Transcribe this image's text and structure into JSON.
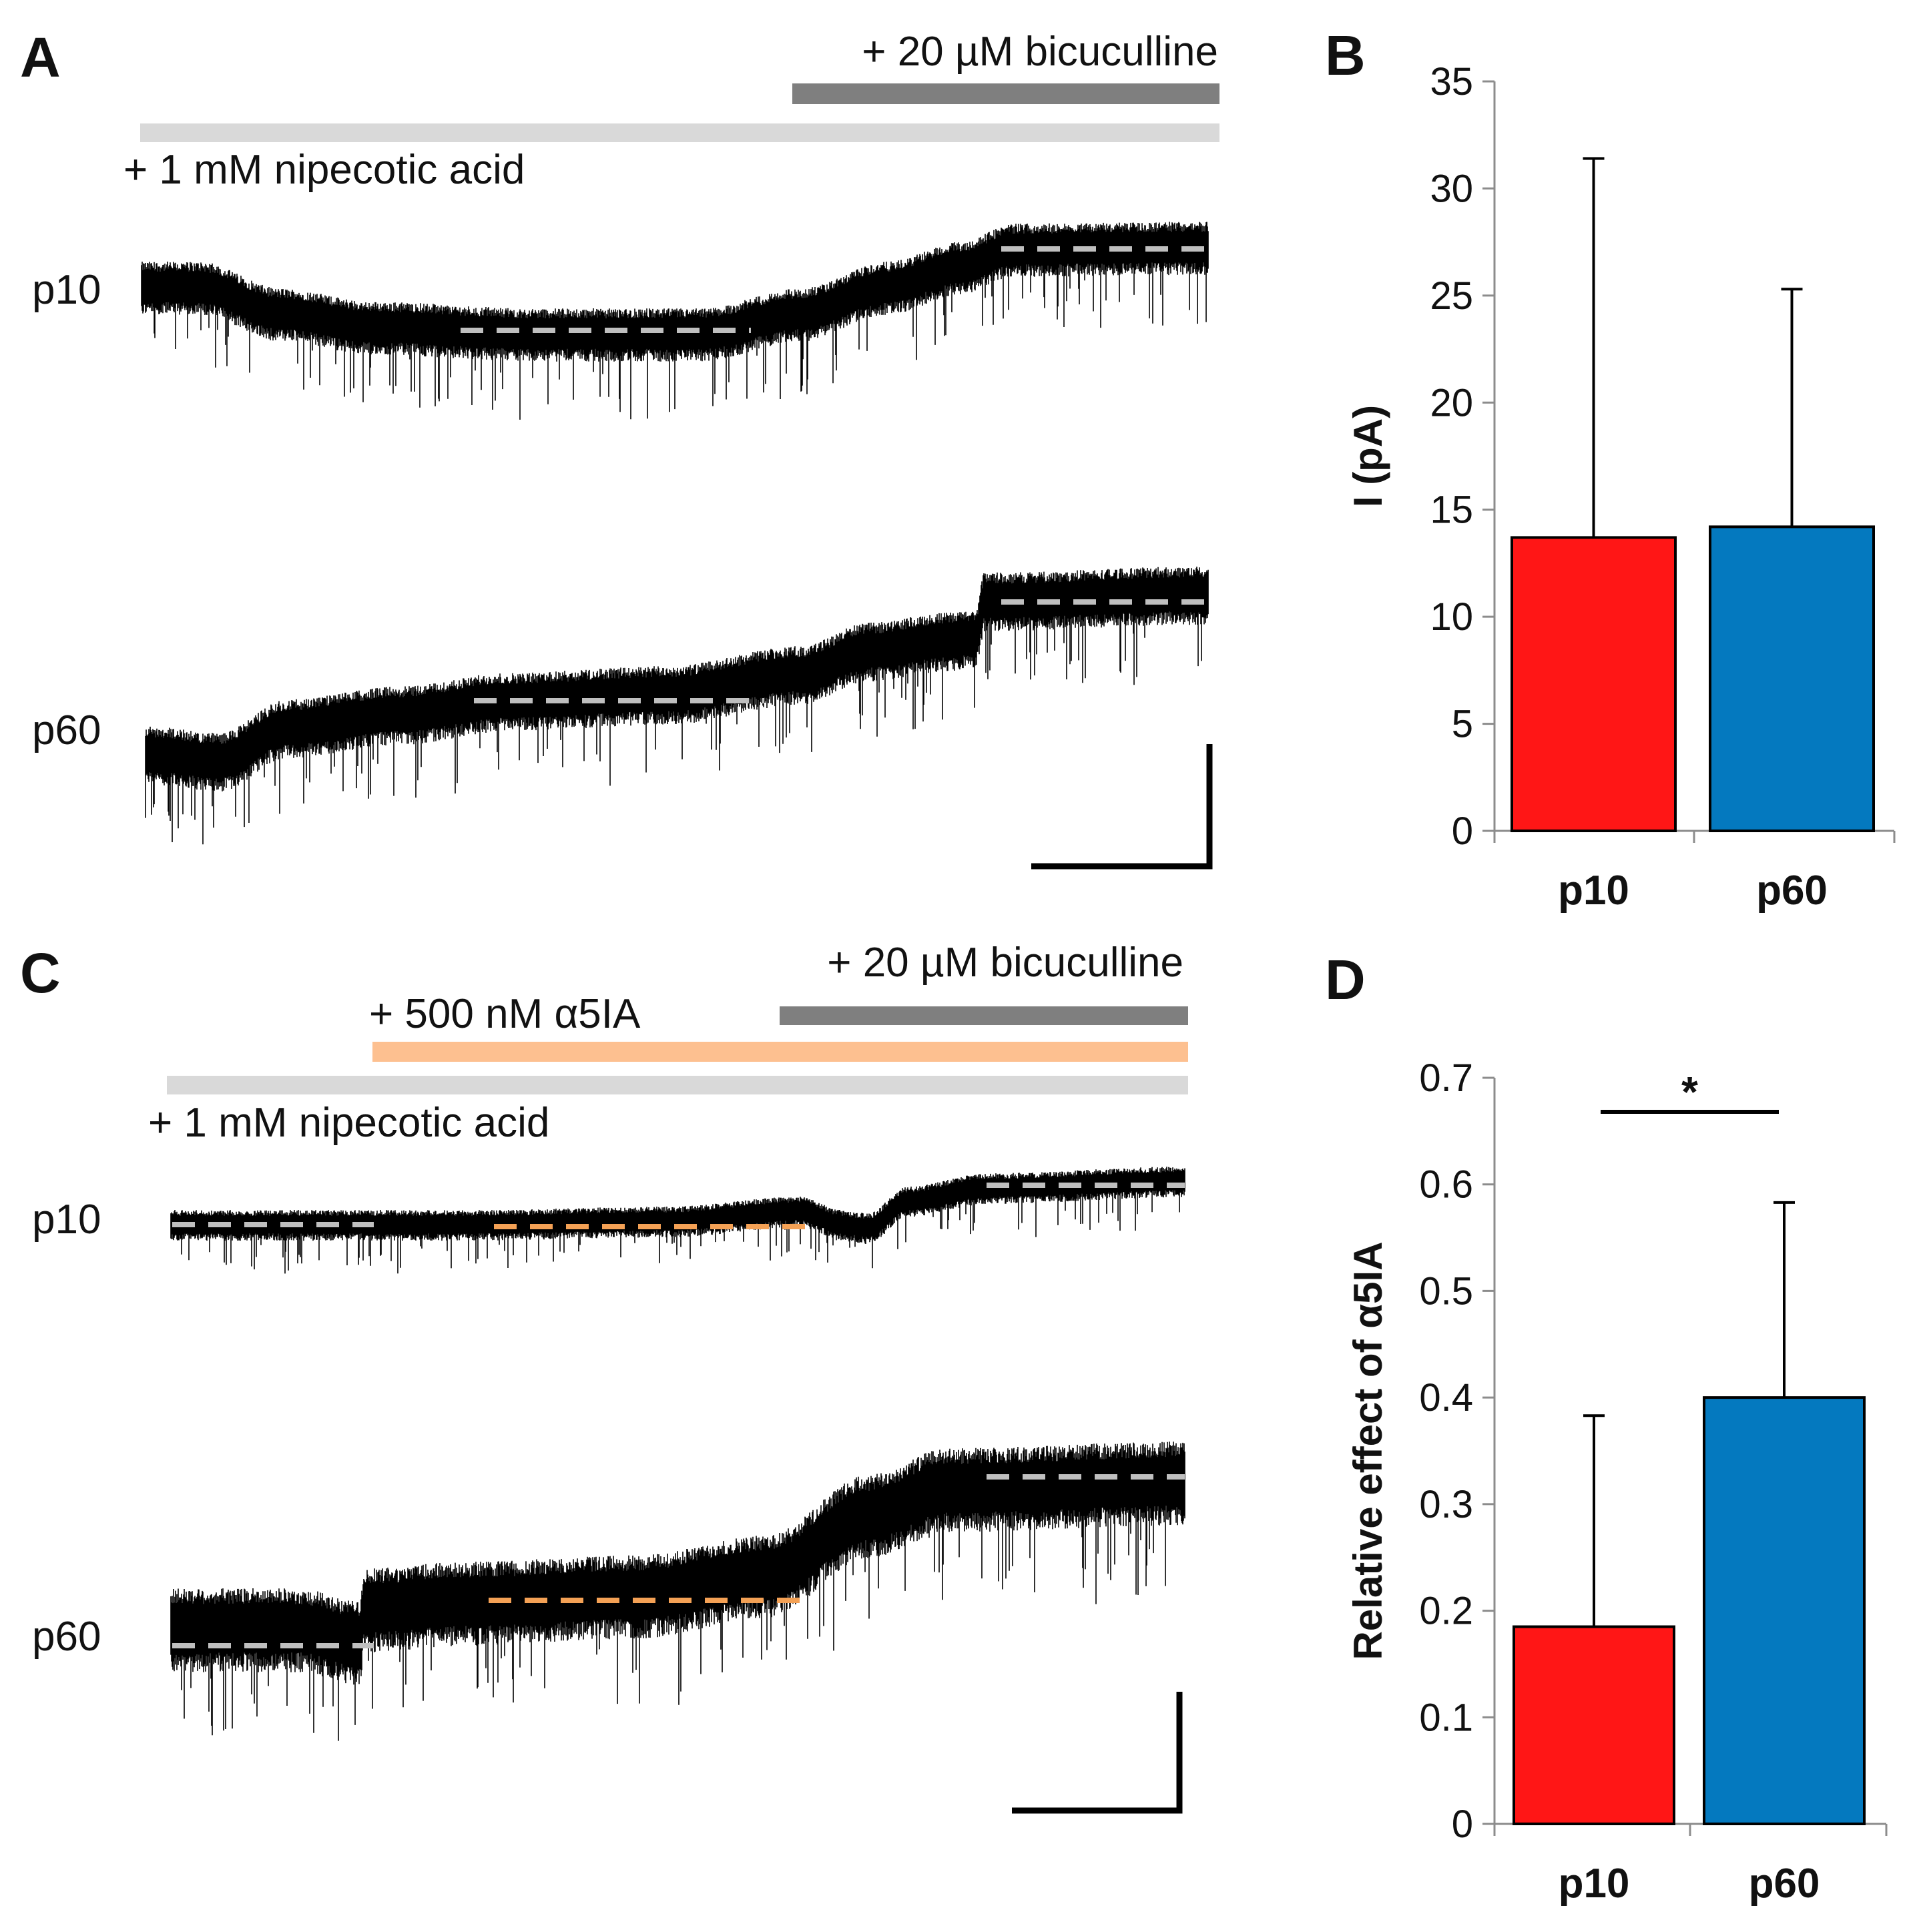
{
  "panel_letters": {
    "a": "A",
    "b": "B",
    "c": "C",
    "d": "D"
  },
  "colors": {
    "p10_bar": "#ff1616",
    "p60_bar": "#0479bf",
    "nipecotic_bar": "#d9d9d9",
    "bicuculline_bar": "#7f7f7f",
    "a5ia_bar": "#fdc090",
    "baseline_dash": "#bfbfbf",
    "a5ia_dash": "#f4a155",
    "trace": "#000000"
  },
  "panel_a": {
    "bicuculline_label": "+ 20 µM bicuculline",
    "nipecotic_label": "+ 1 mM nipecotic acid",
    "trace_labels": [
      "p10",
      "p60"
    ]
  },
  "panel_c": {
    "bicuculline_label": "+ 20 µM bicuculline",
    "a5ia_label": "+ 500 nM α5IA",
    "nipecotic_label": "+ 1 mM nipecotic acid",
    "trace_labels": [
      "p10",
      "p60"
    ]
  },
  "chart_data": [
    {
      "panel": "B",
      "type": "bar",
      "categories": [
        "p10",
        "p60"
      ],
      "values": [
        13.7,
        14.2
      ],
      "error_upper": [
        17.7,
        11.1
      ],
      "title": "",
      "xlabel": "",
      "ylabel": "I (pA)",
      "ylim": [
        0,
        35
      ],
      "yticks": [
        0,
        5,
        10,
        15,
        20,
        25,
        30,
        35
      ],
      "ytick_labels": [
        "0",
        "5",
        "10",
        "15",
        "20",
        "25",
        "30",
        "35"
      ],
      "grid": false,
      "legend": "none"
    },
    {
      "panel": "D",
      "type": "bar",
      "categories": [
        "p10",
        "p60"
      ],
      "values": [
        0.185,
        0.4
      ],
      "error_upper": [
        0.198,
        0.183
      ],
      "title": "",
      "xlabel": "",
      "ylabel": "Relative effect of α5IA",
      "ylim": [
        0,
        0.7
      ],
      "yticks": [
        0,
        0.1,
        0.2,
        0.3,
        0.4,
        0.5,
        0.6,
        0.7
      ],
      "ytick_labels": [
        "0",
        "0.1",
        "0.2",
        "0.3",
        "0.4",
        "0.5",
        "0.6",
        "0.7"
      ],
      "significance": {
        "between": [
          "p10",
          "p60"
        ],
        "label": "*"
      },
      "grid": false,
      "legend": "none"
    }
  ]
}
